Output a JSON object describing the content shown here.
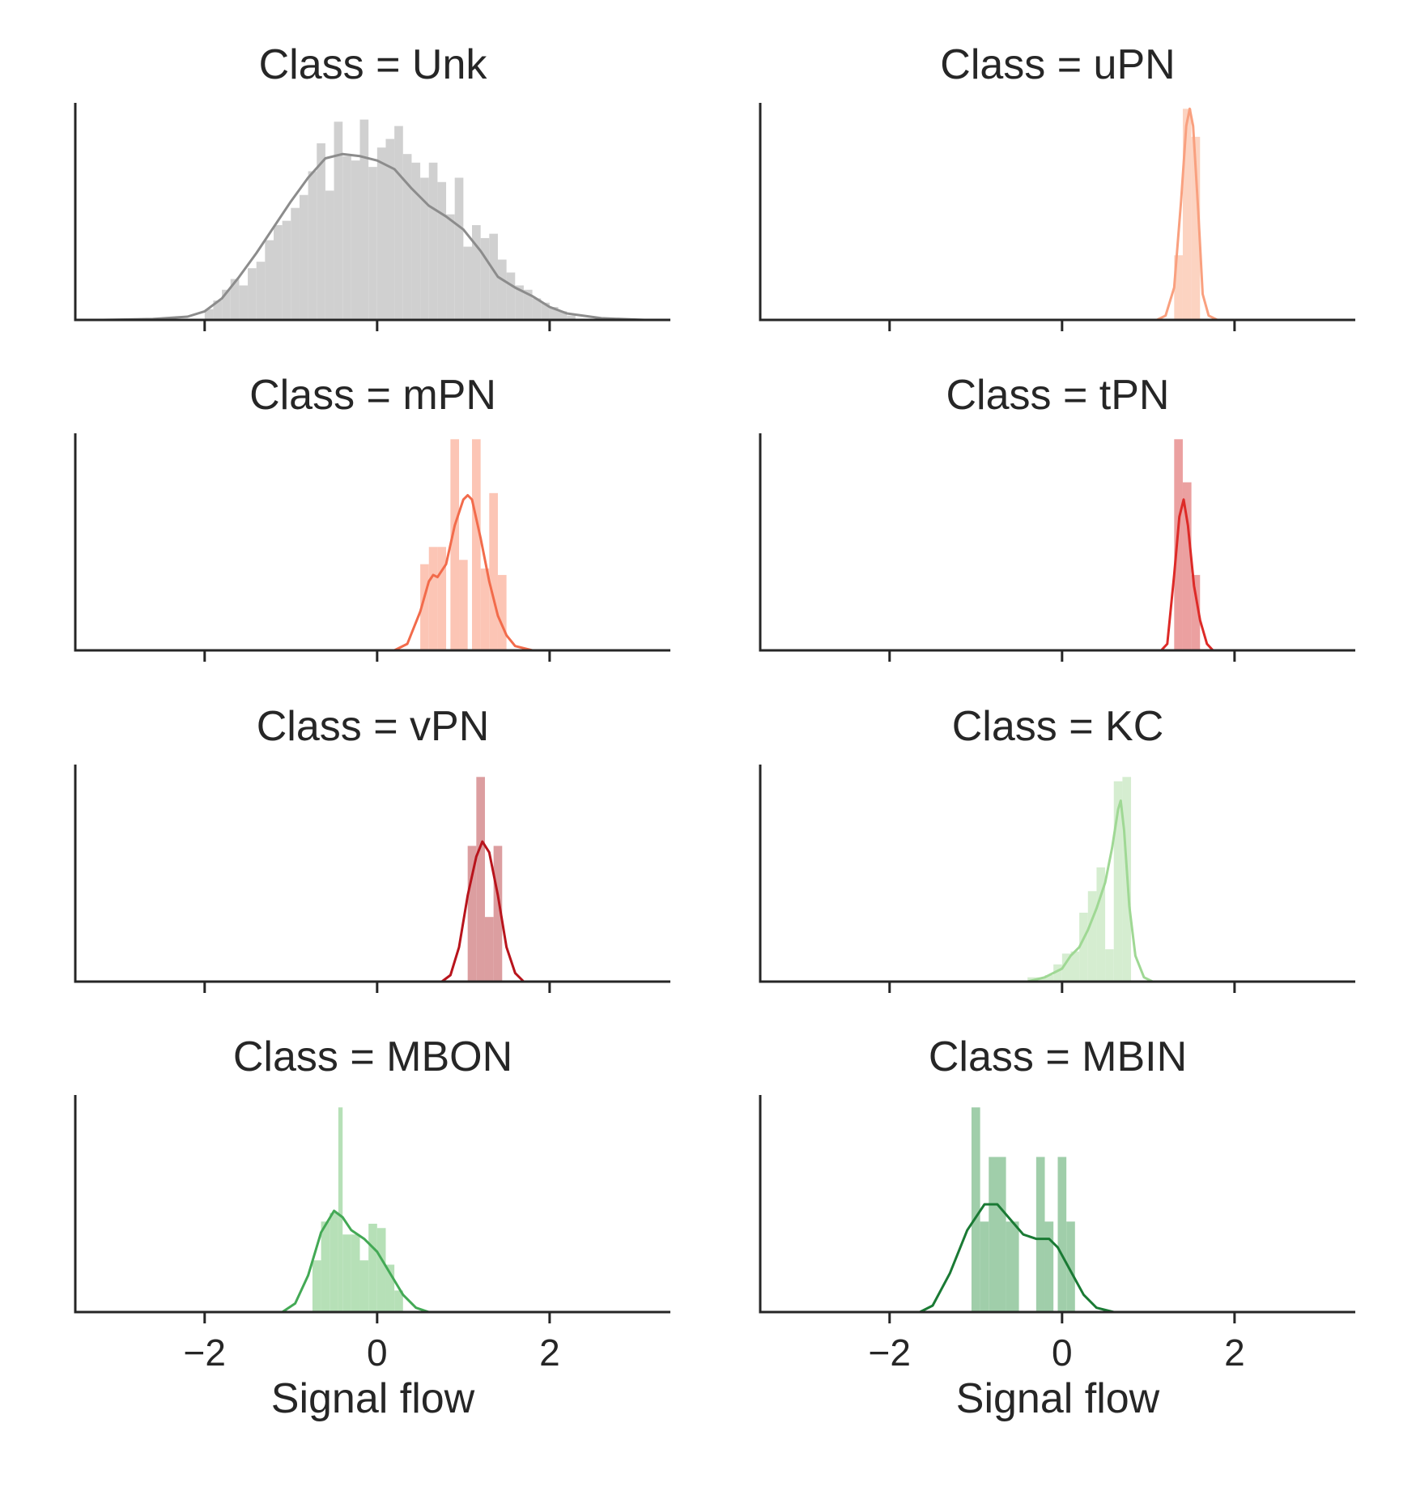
{
  "figure": {
    "x_axis_label": "Signal flow",
    "x_ticks": [
      -2,
      0,
      2
    ],
    "x_tick_labels": [
      "−2",
      "0",
      "2"
    ],
    "x_range": [
      -3.5,
      3.4
    ]
  },
  "chart_data": [
    {
      "type": "histogram",
      "title": "Class = Unk",
      "hist_color": "#d0d0d0",
      "kde_color": "#8c8c8c",
      "ylim": [
        0,
        1
      ],
      "bins": [
        [
          -2.0,
          -1.9,
          0.05
        ],
        [
          -1.9,
          -1.8,
          0.09
        ],
        [
          -1.8,
          -1.7,
          0.14
        ],
        [
          -1.7,
          -1.6,
          0.19
        ],
        [
          -1.6,
          -1.5,
          0.16
        ],
        [
          -1.5,
          -1.4,
          0.24
        ],
        [
          -1.4,
          -1.3,
          0.27
        ],
        [
          -1.3,
          -1.2,
          0.37
        ],
        [
          -1.2,
          -1.1,
          0.44
        ],
        [
          -1.1,
          -1.0,
          0.46
        ],
        [
          -1.0,
          -0.9,
          0.52
        ],
        [
          -0.9,
          -0.8,
          0.58
        ],
        [
          -0.8,
          -0.7,
          0.69
        ],
        [
          -0.7,
          -0.6,
          0.82
        ],
        [
          -0.6,
          -0.5,
          0.6
        ],
        [
          -0.5,
          -0.4,
          0.92
        ],
        [
          -0.4,
          -0.3,
          0.76
        ],
        [
          -0.3,
          -0.2,
          0.74
        ],
        [
          -0.2,
          -0.1,
          0.93
        ],
        [
          -0.1,
          0.0,
          0.71
        ],
        [
          0.0,
          0.1,
          0.8
        ],
        [
          0.1,
          0.2,
          0.84
        ],
        [
          0.2,
          0.3,
          0.9
        ],
        [
          0.3,
          0.4,
          0.77
        ],
        [
          0.4,
          0.5,
          0.73
        ],
        [
          0.5,
          0.6,
          0.66
        ],
        [
          0.6,
          0.7,
          0.73
        ],
        [
          0.7,
          0.8,
          0.64
        ],
        [
          0.8,
          0.9,
          0.49
        ],
        [
          0.9,
          1.0,
          0.66
        ],
        [
          1.0,
          1.1,
          0.34
        ],
        [
          1.1,
          1.2,
          0.44
        ],
        [
          1.2,
          1.3,
          0.38
        ],
        [
          1.3,
          1.4,
          0.4
        ],
        [
          1.4,
          1.5,
          0.28
        ],
        [
          1.5,
          1.6,
          0.22
        ],
        [
          1.6,
          1.7,
          0.16
        ],
        [
          1.7,
          1.8,
          0.14
        ],
        [
          1.8,
          1.9,
          0.1
        ],
        [
          1.9,
          2.0,
          0.08
        ],
        [
          2.0,
          2.1,
          0.06
        ],
        [
          2.1,
          2.2,
          0.04
        ],
        [
          2.2,
          2.3,
          0.02
        ]
      ],
      "kde": [
        [
          -3.2,
          0.0
        ],
        [
          -2.6,
          0.004
        ],
        [
          -2.2,
          0.015
        ],
        [
          -2.0,
          0.04
        ],
        [
          -1.8,
          0.1
        ],
        [
          -1.6,
          0.2
        ],
        [
          -1.4,
          0.31
        ],
        [
          -1.2,
          0.43
        ],
        [
          -1.0,
          0.55
        ],
        [
          -0.8,
          0.66
        ],
        [
          -0.6,
          0.75
        ],
        [
          -0.4,
          0.77
        ],
        [
          -0.2,
          0.76
        ],
        [
          0.0,
          0.74
        ],
        [
          0.2,
          0.7
        ],
        [
          0.4,
          0.61
        ],
        [
          0.6,
          0.53
        ],
        [
          0.8,
          0.48
        ],
        [
          1.0,
          0.42
        ],
        [
          1.2,
          0.32
        ],
        [
          1.4,
          0.2
        ],
        [
          1.6,
          0.15
        ],
        [
          1.8,
          0.11
        ],
        [
          2.0,
          0.06
        ],
        [
          2.2,
          0.03
        ],
        [
          2.6,
          0.008
        ],
        [
          3.1,
          0.0
        ]
      ]
    },
    {
      "type": "histogram",
      "title": "Class = uPN",
      "hist_color": "#fcd3c1",
      "kde_color": "#f9a07f",
      "ylim": [
        0,
        1
      ],
      "bins": [
        [
          1.3,
          1.4,
          0.3
        ],
        [
          1.4,
          1.5,
          0.98
        ],
        [
          1.5,
          1.6,
          0.85
        ]
      ],
      "kde": [
        [
          1.1,
          0.0
        ],
        [
          1.2,
          0.02
        ],
        [
          1.3,
          0.15
        ],
        [
          1.38,
          0.55
        ],
        [
          1.44,
          0.9
        ],
        [
          1.48,
          0.98
        ],
        [
          1.52,
          0.9
        ],
        [
          1.58,
          0.5
        ],
        [
          1.63,
          0.12
        ],
        [
          1.7,
          0.02
        ],
        [
          1.8,
          0.0
        ]
      ]
    },
    {
      "type": "histogram",
      "title": "Class = mPN",
      "hist_color": "#fcc5b5",
      "kde_color": "#f26b4b",
      "ylim": [
        0,
        1
      ],
      "bins": [
        [
          0.5,
          0.6,
          0.4
        ],
        [
          0.6,
          0.7,
          0.48
        ],
        [
          0.7,
          0.8,
          0.48
        ],
        [
          0.85,
          0.95,
          0.98
        ],
        [
          0.95,
          1.05,
          0.42
        ],
        [
          1.1,
          1.2,
          0.98
        ],
        [
          1.2,
          1.3,
          0.38
        ],
        [
          1.3,
          1.4,
          0.73
        ],
        [
          1.4,
          1.5,
          0.35
        ]
      ],
      "kde": [
        [
          0.2,
          0.0
        ],
        [
          0.35,
          0.03
        ],
        [
          0.5,
          0.18
        ],
        [
          0.6,
          0.32
        ],
        [
          0.65,
          0.35
        ],
        [
          0.7,
          0.34
        ],
        [
          0.8,
          0.4
        ],
        [
          0.9,
          0.58
        ],
        [
          1.0,
          0.7
        ],
        [
          1.05,
          0.72
        ],
        [
          1.1,
          0.7
        ],
        [
          1.2,
          0.52
        ],
        [
          1.3,
          0.32
        ],
        [
          1.4,
          0.16
        ],
        [
          1.5,
          0.07
        ],
        [
          1.6,
          0.02
        ],
        [
          1.8,
          0.0
        ]
      ]
    },
    {
      "type": "histogram",
      "title": "Class = tPN",
      "hist_color": "#eba0a0",
      "kde_color": "#dd2a27",
      "ylim": [
        0,
        1
      ],
      "bins": [
        [
          1.3,
          1.4,
          0.98
        ],
        [
          1.4,
          1.5,
          0.78
        ],
        [
          1.5,
          1.6,
          0.35
        ]
      ],
      "kde": [
        [
          1.15,
          0.0
        ],
        [
          1.22,
          0.03
        ],
        [
          1.3,
          0.35
        ],
        [
          1.36,
          0.62
        ],
        [
          1.41,
          0.7
        ],
        [
          1.46,
          0.58
        ],
        [
          1.53,
          0.3
        ],
        [
          1.6,
          0.14
        ],
        [
          1.68,
          0.03
        ],
        [
          1.75,
          0.0
        ]
      ]
    },
    {
      "type": "histogram",
      "title": "Class = vPN",
      "hist_color": "#dc9ea0",
      "kde_color": "#b8141c",
      "ylim": [
        0,
        1
      ],
      "bins": [
        [
          1.05,
          1.15,
          0.63
        ],
        [
          1.15,
          1.25,
          0.95
        ],
        [
          1.25,
          1.35,
          0.3
        ],
        [
          1.35,
          1.45,
          0.63
        ]
      ],
      "kde": [
        [
          0.75,
          0.0
        ],
        [
          0.85,
          0.03
        ],
        [
          0.95,
          0.16
        ],
        [
          1.05,
          0.4
        ],
        [
          1.15,
          0.58
        ],
        [
          1.22,
          0.65
        ],
        [
          1.3,
          0.6
        ],
        [
          1.4,
          0.4
        ],
        [
          1.5,
          0.16
        ],
        [
          1.6,
          0.04
        ],
        [
          1.7,
          0.0
        ]
      ]
    },
    {
      "type": "histogram",
      "title": "Class = KC",
      "hist_color": "#d5edd0",
      "kde_color": "#9fd894",
      "ylim": [
        0,
        1
      ],
      "bins": [
        [
          -0.4,
          -0.3,
          0.02
        ],
        [
          -0.3,
          -0.2,
          0.02
        ],
        [
          -0.2,
          -0.1,
          0.03
        ],
        [
          -0.1,
          0.0,
          0.08
        ],
        [
          0.0,
          0.1,
          0.13
        ],
        [
          0.1,
          0.2,
          0.14
        ],
        [
          0.2,
          0.3,
          0.32
        ],
        [
          0.3,
          0.4,
          0.42
        ],
        [
          0.4,
          0.5,
          0.53
        ],
        [
          0.5,
          0.6,
          0.15
        ],
        [
          0.6,
          0.7,
          0.93
        ],
        [
          0.7,
          0.8,
          0.95
        ]
      ],
      "kde": [
        [
          -0.4,
          0.0
        ],
        [
          -0.2,
          0.02
        ],
        [
          0.0,
          0.06
        ],
        [
          0.1,
          0.12
        ],
        [
          0.2,
          0.16
        ],
        [
          0.3,
          0.24
        ],
        [
          0.4,
          0.34
        ],
        [
          0.5,
          0.46
        ],
        [
          0.58,
          0.62
        ],
        [
          0.65,
          0.8
        ],
        [
          0.68,
          0.84
        ],
        [
          0.72,
          0.7
        ],
        [
          0.78,
          0.35
        ],
        [
          0.85,
          0.12
        ],
        [
          0.95,
          0.02
        ],
        [
          1.05,
          0.0
        ]
      ]
    },
    {
      "type": "histogram",
      "title": "Class = MBON",
      "hist_color": "#b6e0b7",
      "kde_color": "#43a955",
      "ylim": [
        0,
        1
      ],
      "bins": [
        [
          -0.75,
          -0.65,
          0.24
        ],
        [
          -0.65,
          -0.55,
          0.42
        ],
        [
          -0.55,
          -0.45,
          0.46
        ],
        [
          -0.45,
          -0.4,
          0.95
        ],
        [
          -0.4,
          -0.3,
          0.36
        ],
        [
          -0.3,
          -0.2,
          0.36
        ],
        [
          -0.2,
          -0.1,
          0.24
        ],
        [
          -0.1,
          0.0,
          0.41
        ],
        [
          0.0,
          0.1,
          0.39
        ],
        [
          0.1,
          0.2,
          0.22
        ],
        [
          0.2,
          0.3,
          0.1
        ]
      ],
      "kde": [
        [
          -1.1,
          0.0
        ],
        [
          -0.95,
          0.04
        ],
        [
          -0.8,
          0.17
        ],
        [
          -0.65,
          0.37
        ],
        [
          -0.5,
          0.47
        ],
        [
          -0.4,
          0.44
        ],
        [
          -0.3,
          0.38
        ],
        [
          -0.15,
          0.34
        ],
        [
          0.0,
          0.28
        ],
        [
          0.15,
          0.18
        ],
        [
          0.3,
          0.08
        ],
        [
          0.45,
          0.02
        ],
        [
          0.6,
          0.0
        ]
      ]
    },
    {
      "type": "histogram",
      "title": "Class = MBIN",
      "hist_color": "#a0ceaa",
      "kde_color": "#1a7a34",
      "ylim": [
        0,
        1
      ],
      "bins": [
        [
          -1.05,
          -0.95,
          0.95
        ],
        [
          -0.95,
          -0.85,
          0.42
        ],
        [
          -0.85,
          -0.65,
          0.72
        ],
        [
          -0.65,
          -0.5,
          0.42
        ],
        [
          -0.3,
          -0.2,
          0.72
        ],
        [
          -0.2,
          -0.1,
          0.42
        ],
        [
          -0.05,
          0.05,
          0.72
        ],
        [
          0.05,
          0.15,
          0.42
        ]
      ],
      "kde": [
        [
          -1.65,
          0.0
        ],
        [
          -1.5,
          0.03
        ],
        [
          -1.3,
          0.18
        ],
        [
          -1.1,
          0.38
        ],
        [
          -0.9,
          0.5
        ],
        [
          -0.75,
          0.5
        ],
        [
          -0.6,
          0.43
        ],
        [
          -0.45,
          0.36
        ],
        [
          -0.3,
          0.34
        ],
        [
          -0.15,
          0.34
        ],
        [
          -0.05,
          0.3
        ],
        [
          0.1,
          0.19
        ],
        [
          0.25,
          0.08
        ],
        [
          0.4,
          0.02
        ],
        [
          0.6,
          0.0
        ]
      ]
    }
  ]
}
